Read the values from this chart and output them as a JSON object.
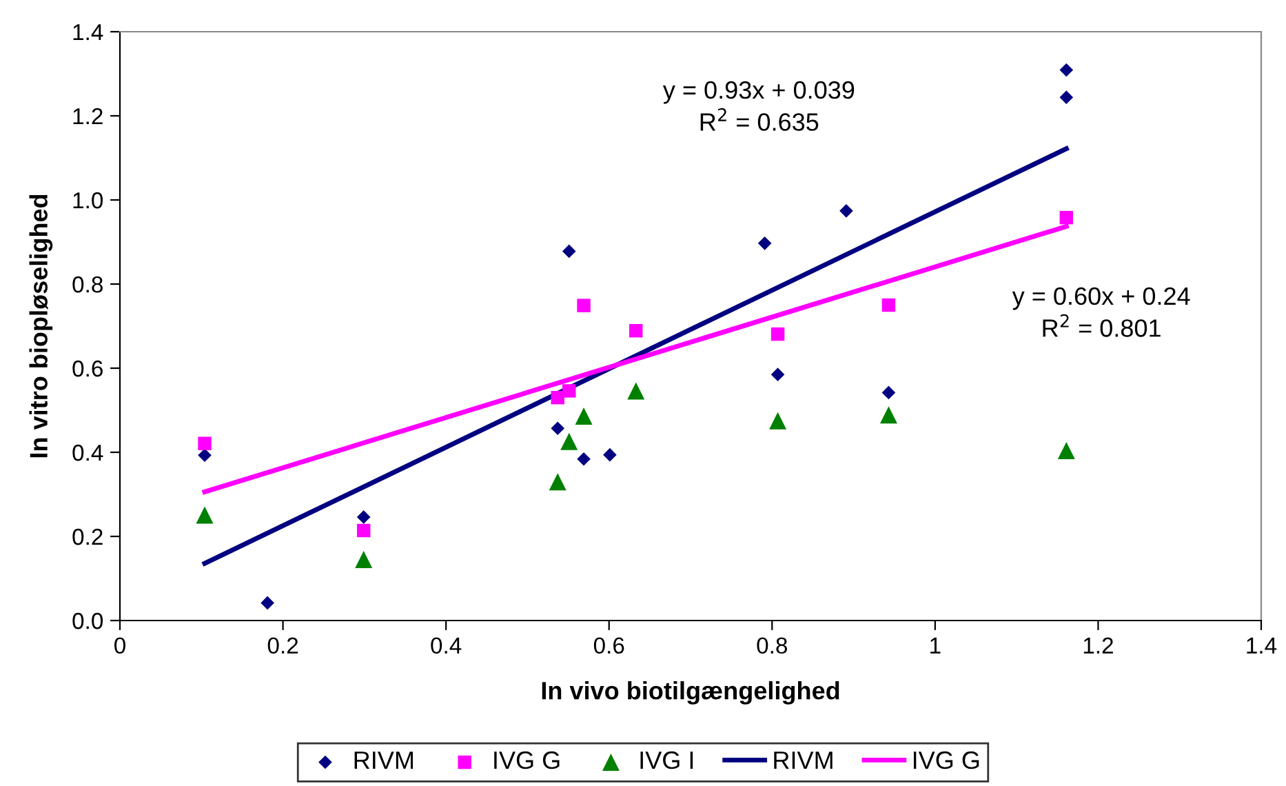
{
  "chart_data": {
    "type": "scatter",
    "xlabel": "In vivo biotilgængelighed",
    "ylabel": "In vitro biopløselighed",
    "xlim": [
      0,
      1.4
    ],
    "xticks": [
      0,
      0.2,
      0.4,
      0.6,
      0.8,
      1,
      1.2,
      1.4
    ],
    "ylim": [
      0,
      1.4
    ],
    "yticks": [
      {
        "value": 0,
        "label": "0.0"
      },
      {
        "value": 0.2,
        "label": "0.2"
      },
      {
        "value": 0.4,
        "label": "0.4"
      },
      {
        "value": 0.6,
        "label": "0.6"
      },
      {
        "value": 0.8,
        "label": "0.8"
      },
      {
        "value": 1.0,
        "label": "1.0"
      },
      {
        "value": 1.2,
        "label": "1.2"
      },
      {
        "value": 1.4,
        "label": "1.4"
      }
    ],
    "grid": false,
    "legend": "bottom",
    "series": [
      {
        "name": "RIVM",
        "marker": "diamond",
        "color": "#000080",
        "x": [
          0.104,
          0.181,
          0.299,
          0.551,
          0.537,
          0.569,
          0.601,
          0.791,
          0.807,
          0.891,
          0.943,
          1.161,
          1.161
        ],
        "values": [
          0.393,
          0.042,
          0.246,
          0.878,
          0.457,
          0.384,
          0.394,
          0.897,
          0.585,
          0.974,
          0.542,
          1.309,
          1.244
        ]
      },
      {
        "name": "IVG G",
        "marker": "square",
        "color": "#ff00ff",
        "x": [
          0.104,
          0.299,
          0.537,
          0.551,
          0.569,
          0.633,
          0.807,
          0.943,
          1.161
        ],
        "values": [
          0.421,
          0.214,
          0.53,
          0.546,
          0.749,
          0.689,
          0.681,
          0.75,
          0.958
        ]
      },
      {
        "name": "IVG I",
        "marker": "triangle",
        "color": "#008000",
        "x": [
          0.104,
          0.299,
          0.537,
          0.551,
          0.569,
          0.633,
          0.807,
          0.943,
          1.161
        ],
        "values": [
          0.251,
          0.145,
          0.33,
          0.426,
          0.486,
          0.546,
          0.475,
          0.489,
          0.404
        ]
      },
      {
        "name": "RIVM",
        "type": "line",
        "marker": "none",
        "line_style": "solid",
        "color": "#000080",
        "x": [
          0.104,
          1.161
        ],
        "values": [
          0.136,
          1.122
        ]
      },
      {
        "name": "IVG G",
        "type": "line",
        "marker": "none",
        "line_style": "solid",
        "color": "#ff00ff",
        "x": [
          0.104,
          1.161
        ],
        "values": [
          0.306,
          0.937
        ]
      }
    ],
    "annotations": [
      "y = 0.93x + 0.039\nR$^{2}$ = 0.635",
      "y = 0.60x + 0.24\nR$^{2}$ = 0.801"
    ]
  }
}
